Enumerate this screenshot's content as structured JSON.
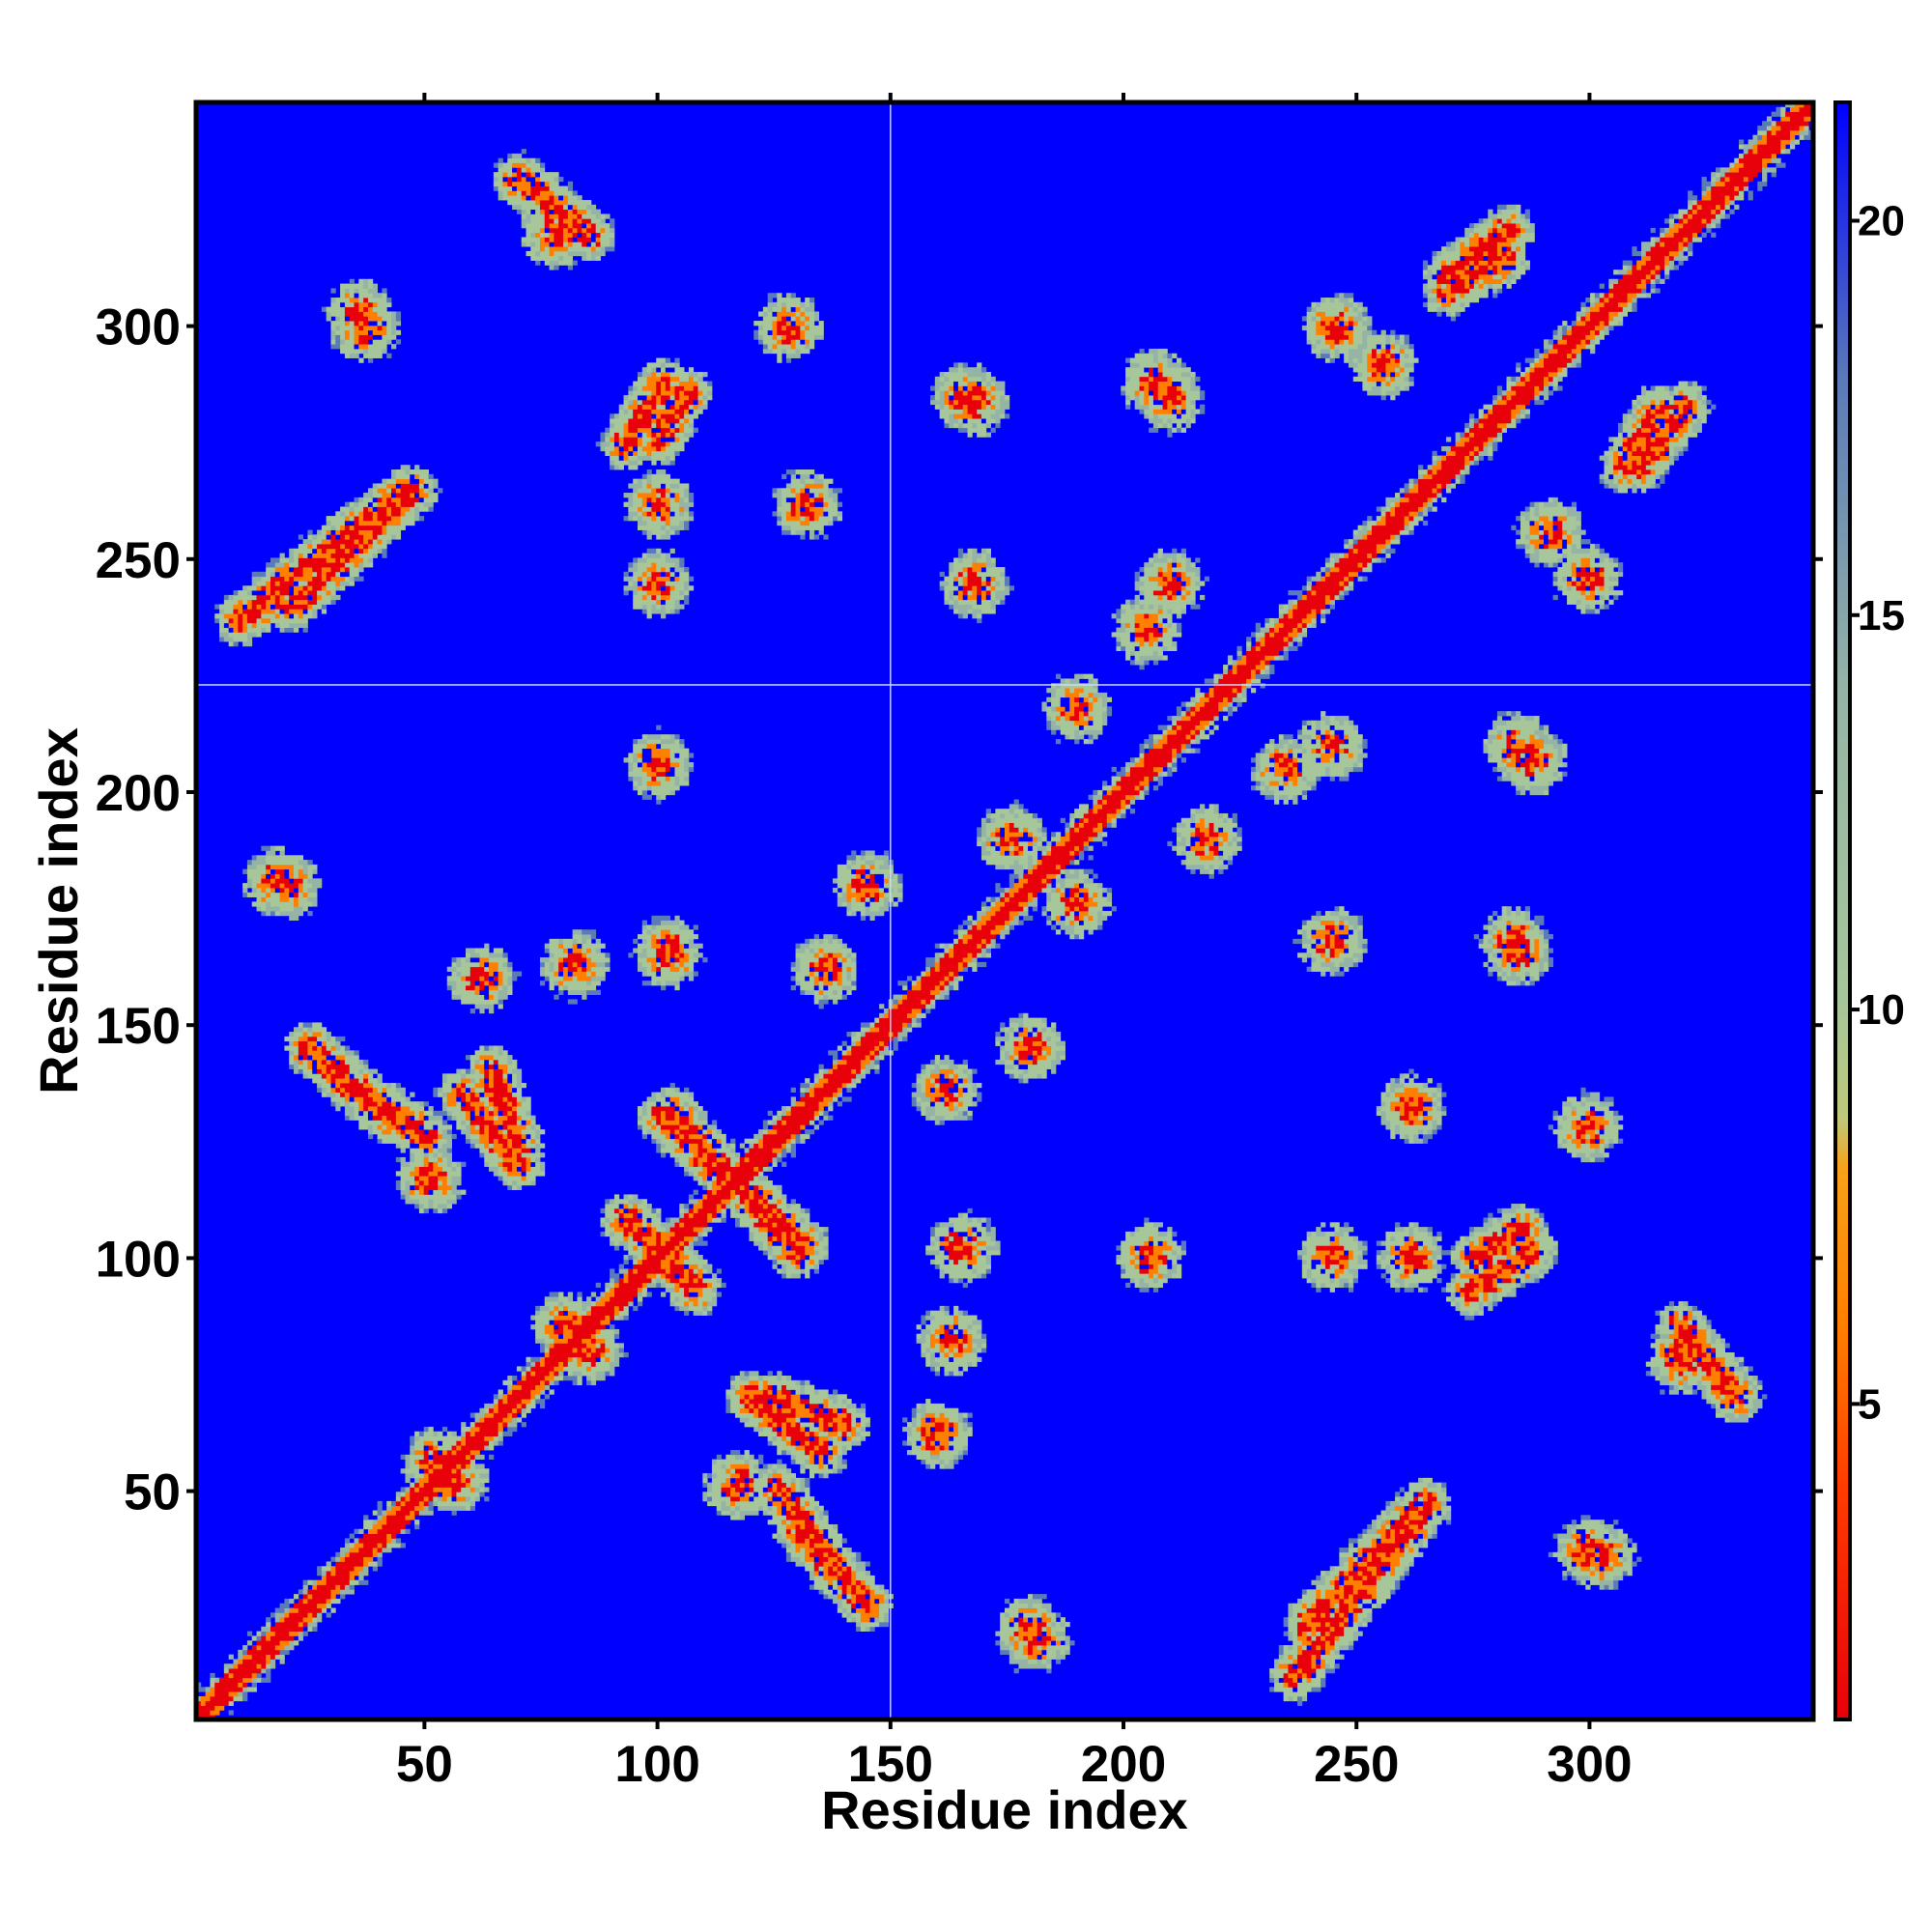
{
  "chart_data": {
    "type": "heatmap",
    "subtype": "residue distance/contact map",
    "title": "",
    "xlabel": "Residue index",
    "ylabel": "Residue index",
    "xlim": [
      1,
      348
    ],
    "ylim": [
      1,
      348
    ],
    "x_ticks": [
      50,
      100,
      150,
      200,
      250,
      300
    ],
    "y_ticks": [
      50,
      100,
      150,
      200,
      250,
      300
    ],
    "n_residues": 348,
    "symmetric": true,
    "background_color": "#0000ff",
    "guide_lines": {
      "x": 150,
      "y": 223
    },
    "colorbar": {
      "ticks": [
        5,
        10,
        15,
        20
      ],
      "range": [
        1,
        21.5
      ],
      "colors": [
        {
          "value": 1,
          "color": "#e8000b"
        },
        {
          "value": 4,
          "color": "#ff3d00"
        },
        {
          "value": 6,
          "color": "#ff7f00"
        },
        {
          "value": 8,
          "color": "#f7a21a"
        },
        {
          "value": 8.6,
          "color": "#c0c87a"
        },
        {
          "value": 10,
          "color": "#a7c79a"
        },
        {
          "value": 14,
          "color": "#96b4a6"
        },
        {
          "value": 18,
          "color": "#5a7ab8"
        },
        {
          "value": 21.5,
          "color": "#0000ff"
        }
      ]
    },
    "diagonal_band": {
      "core_color": "#e8000b",
      "mid_color": "#ff7f00",
      "outer_color": "#a7c79a"
    },
    "contact_regions": [
      {
        "x": 21,
        "y": 240,
        "x2": 47,
        "y2": 265,
        "kind": "antiparallel"
      },
      {
        "x": 36,
        "y": 303,
        "kind": "blob"
      },
      {
        "x": 78,
        "y": 320,
        "kind": "blob"
      },
      {
        "x": 100,
        "y": 276,
        "x2": 106,
        "y2": 286,
        "kind": "parallel"
      },
      {
        "x": 100,
        "y": 262,
        "kind": "blob"
      },
      {
        "x": 132,
        "y": 262,
        "kind": "blob"
      },
      {
        "x": 168,
        "y": 284,
        "kind": "blob"
      },
      {
        "x": 207,
        "y": 288,
        "kind": "blob"
      },
      {
        "x": 270,
        "y": 308,
        "x2": 282,
        "y2": 315,
        "kind": "parallel"
      },
      {
        "x": 256,
        "y": 292,
        "kind": "blob"
      },
      {
        "x": 311,
        "y": 270,
        "x2": 321,
        "y2": 283,
        "kind": "parallel"
      },
      {
        "x": 300,
        "y": 246,
        "kind": "blob"
      },
      {
        "x": 168,
        "y": 245,
        "kind": "blob"
      },
      {
        "x": 210,
        "y": 245,
        "kind": "blob"
      },
      {
        "x": 235,
        "y": 205,
        "kind": "blob"
      },
      {
        "x": 285,
        "y": 210,
        "kind": "blob"
      },
      {
        "x": 18,
        "y": 181,
        "kind": "blob"
      },
      {
        "x": 102,
        "y": 166,
        "kind": "blob"
      },
      {
        "x": 136,
        "y": 162,
        "kind": "blob"
      },
      {
        "x": 176,
        "y": 190,
        "kind": "blob"
      },
      {
        "x": 218,
        "y": 190,
        "kind": "blob"
      },
      {
        "x": 285,
        "y": 166,
        "kind": "blob"
      },
      {
        "x": 25,
        "y": 145,
        "x2": 42,
        "y2": 130,
        "kind": "antiparallel"
      },
      {
        "x": 64,
        "y": 140,
        "x2": 70,
        "y2": 124,
        "kind": "antiparallel"
      },
      {
        "x": 51,
        "y": 117,
        "kind": "blob"
      },
      {
        "x": 103,
        "y": 131,
        "x2": 130,
        "y2": 101,
        "kind": "antiparallel"
      },
      {
        "x": 94,
        "y": 108,
        "x2": 108,
        "y2": 93,
        "kind": "antiparallel"
      },
      {
        "x": 85,
        "y": 80,
        "kind": "blob"
      },
      {
        "x": 120,
        "y": 70,
        "x2": 135,
        "y2": 58,
        "kind": "antiparallel"
      },
      {
        "x": 138,
        "y": 32,
        "x2": 126,
        "y2": 50,
        "kind": "antiparallel"
      },
      {
        "x": 165,
        "y": 102,
        "kind": "blob"
      },
      {
        "x": 206,
        "y": 100,
        "kind": "blob"
      },
      {
        "x": 180,
        "y": 145,
        "kind": "blob"
      },
      {
        "x": 245,
        "y": 100,
        "x2": 272,
        "y2": 108,
        "kind": "blob"
      },
      {
        "x": 275,
        "y": 93,
        "x2": 288,
        "y2": 101,
        "kind": "parallel"
      },
      {
        "x": 300,
        "y": 128,
        "kind": "blob"
      },
      {
        "x": 320,
        "y": 85,
        "x2": 332,
        "y2": 70,
        "kind": "antiparallel"
      },
      {
        "x": 237,
        "y": 10,
        "x2": 265,
        "y2": 46,
        "kind": "parallel"
      },
      {
        "x": 300,
        "y": 37,
        "kind": "blob"
      },
      {
        "x": 180,
        "y": 20,
        "kind": "blob"
      },
      {
        "x": 56,
        "y": 52,
        "kind": "blob"
      },
      {
        "x": 160,
        "y": 62,
        "kind": "blob"
      },
      {
        "x": 163,
        "y": 82,
        "kind": "blob"
      }
    ]
  }
}
